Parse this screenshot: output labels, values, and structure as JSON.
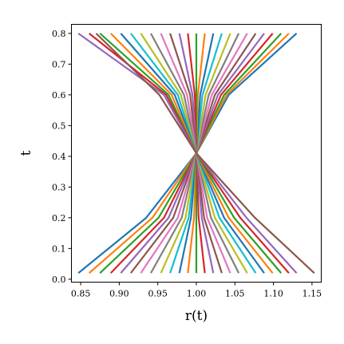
{
  "chart_data": {
    "type": "line",
    "xlabel": "r(t)",
    "ylabel": "t",
    "xlim": [
      0.838,
      1.162
    ],
    "ylim": [
      -0.0095,
      0.8295
    ],
    "xticks": [
      0.85,
      0.9,
      0.95,
      1.0,
      1.05,
      1.1,
      1.15
    ],
    "xtick_labels": [
      "0.85",
      "0.90",
      "0.95",
      "1.00",
      "1.05",
      "1.10",
      "1.15"
    ],
    "yticks": [
      0.0,
      0.1,
      0.2,
      0.3,
      0.4,
      0.5,
      0.6,
      0.7,
      0.8
    ],
    "ytick_labels": [
      "0.0",
      "0.1",
      "0.2",
      "0.3",
      "0.4",
      "0.5",
      "0.6",
      "0.7",
      "0.8"
    ],
    "grid": false,
    "colors": [
      "#1f77b4",
      "#ff7f0e",
      "#2ca02c",
      "#d62728",
      "#9467bd",
      "#8c564b",
      "#e377c2",
      "#7f7f7f",
      "#bcbd22",
      "#17becf"
    ],
    "series": [
      {
        "values": [
          [
            0.847,
            0.02
          ],
          [
            0.935,
            0.2
          ],
          [
            1.0,
            0.41
          ],
          [
            1.042,
            0.6
          ],
          [
            1.13,
            0.8
          ]
        ]
      },
      {
        "values": [
          [
            0.861,
            0.02
          ],
          [
            0.943,
            0.2
          ],
          [
            1.0,
            0.41
          ],
          [
            1.039,
            0.6
          ],
          [
            1.12,
            0.8
          ]
        ]
      },
      {
        "values": [
          [
            0.875,
            0.02
          ],
          [
            0.951,
            0.2
          ],
          [
            1.0,
            0.41
          ],
          [
            1.036,
            0.6
          ],
          [
            1.11,
            0.8
          ]
        ]
      },
      {
        "values": [
          [
            0.889,
            0.02
          ],
          [
            0.958,
            0.2
          ],
          [
            1.0,
            0.41
          ],
          [
            1.032,
            0.6
          ],
          [
            1.099,
            0.8
          ]
        ]
      },
      {
        "values": [
          [
            0.902,
            0.02
          ],
          [
            0.964,
            0.2
          ],
          [
            1.0,
            0.41
          ],
          [
            1.028,
            0.6
          ],
          [
            1.088,
            0.8
          ]
        ]
      },
      {
        "values": [
          [
            0.915,
            0.02
          ],
          [
            0.97,
            0.2
          ],
          [
            1.0,
            0.41
          ],
          [
            1.024,
            0.6
          ],
          [
            1.077,
            0.8
          ]
        ]
      },
      {
        "values": [
          [
            0.928,
            0.02
          ],
          [
            0.976,
            0.2
          ],
          [
            1.0,
            0.41
          ],
          [
            1.02,
            0.6
          ],
          [
            1.066,
            0.8
          ]
        ]
      },
      {
        "values": [
          [
            0.941,
            0.02
          ],
          [
            0.981,
            0.2
          ],
          [
            1.0,
            0.41
          ],
          [
            1.016,
            0.6
          ],
          [
            1.055,
            0.8
          ]
        ]
      },
      {
        "values": [
          [
            0.954,
            0.02
          ],
          [
            0.986,
            0.2
          ],
          [
            1.0,
            0.41
          ],
          [
            1.012,
            0.6
          ],
          [
            1.044,
            0.8
          ]
        ]
      },
      {
        "values": [
          [
            0.966,
            0.02
          ],
          [
            0.99,
            0.2
          ],
          [
            1.0,
            0.41
          ],
          [
            1.008,
            0.6
          ],
          [
            1.033,
            0.8
          ]
        ]
      },
      {
        "values": [
          [
            0.978,
            0.02
          ],
          [
            0.993,
            0.2
          ],
          [
            1.0,
            0.41
          ],
          [
            1.005,
            0.6
          ],
          [
            1.022,
            0.8
          ]
        ]
      },
      {
        "values": [
          [
            0.989,
            0.02
          ],
          [
            0.997,
            0.2
          ],
          [
            1.0,
            0.41
          ],
          [
            1.002,
            0.6
          ],
          [
            1.011,
            0.8
          ]
        ]
      },
      {
        "values": [
          [
            1.0,
            0.02
          ],
          [
            1.0,
            0.2
          ],
          [
            1.0,
            0.41
          ],
          [
            1.0,
            0.6
          ],
          [
            1.0,
            0.8
          ]
        ]
      },
      {
        "values": [
          [
            1.011,
            0.02
          ],
          [
            1.003,
            0.2
          ],
          [
            1.0,
            0.41
          ],
          [
            0.998,
            0.6
          ],
          [
            0.989,
            0.8
          ]
        ]
      },
      {
        "values": [
          [
            1.022,
            0.02
          ],
          [
            1.007,
            0.2
          ],
          [
            1.0,
            0.41
          ],
          [
            0.995,
            0.6
          ],
          [
            0.978,
            0.8
          ]
        ]
      },
      {
        "values": [
          [
            1.033,
            0.02
          ],
          [
            1.01,
            0.2
          ],
          [
            1.0,
            0.41
          ],
          [
            0.992,
            0.6
          ],
          [
            0.966,
            0.8
          ]
        ]
      },
      {
        "values": [
          [
            1.044,
            0.02
          ],
          [
            1.014,
            0.2
          ],
          [
            1.0,
            0.41
          ],
          [
            0.988,
            0.6
          ],
          [
            0.954,
            0.8
          ]
        ]
      },
      {
        "values": [
          [
            1.055,
            0.02
          ],
          [
            1.019,
            0.2
          ],
          [
            1.0,
            0.41
          ],
          [
            0.984,
            0.6
          ],
          [
            0.941,
            0.8
          ]
        ]
      },
      {
        "values": [
          [
            1.066,
            0.02
          ],
          [
            1.024,
            0.2
          ],
          [
            1.0,
            0.41
          ],
          [
            0.98,
            0.6
          ],
          [
            0.928,
            0.8
          ]
        ]
      },
      {
        "values": [
          [
            1.077,
            0.02
          ],
          [
            1.03,
            0.2
          ],
          [
            1.0,
            0.41
          ],
          [
            0.976,
            0.6
          ],
          [
            0.915,
            0.8
          ]
        ]
      },
      {
        "values": [
          [
            1.088,
            0.02
          ],
          [
            1.036,
            0.2
          ],
          [
            1.0,
            0.41
          ],
          [
            0.972,
            0.6
          ],
          [
            0.902,
            0.8
          ]
        ]
      },
      {
        "values": [
          [
            1.099,
            0.02
          ],
          [
            1.042,
            0.2
          ],
          [
            1.0,
            0.41
          ],
          [
            0.968,
            0.6
          ],
          [
            0.889,
            0.8
          ]
        ]
      },
      {
        "values": [
          [
            1.11,
            0.02
          ],
          [
            1.049,
            0.2
          ],
          [
            1.0,
            0.41
          ],
          [
            0.964,
            0.6
          ],
          [
            0.875,
            0.8
          ]
        ]
      },
      {
        "values": [
          [
            1.12,
            0.02
          ],
          [
            1.057,
            0.2
          ],
          [
            1.0,
            0.41
          ],
          [
            0.961,
            0.6
          ],
          [
            0.861,
            0.8
          ]
        ]
      },
      {
        "values": [
          [
            1.13,
            0.02
          ],
          [
            1.065,
            0.2
          ],
          [
            1.0,
            0.41
          ],
          [
            0.958,
            0.6
          ],
          [
            0.847,
            0.8
          ]
        ]
      },
      {
        "values": [
          [
            1.153,
            0.02
          ],
          [
            1.076,
            0.2
          ],
          [
            1.0,
            0.41
          ],
          [
            0.952,
            0.6
          ],
          [
            0.87,
            0.8
          ]
        ]
      }
    ]
  }
}
